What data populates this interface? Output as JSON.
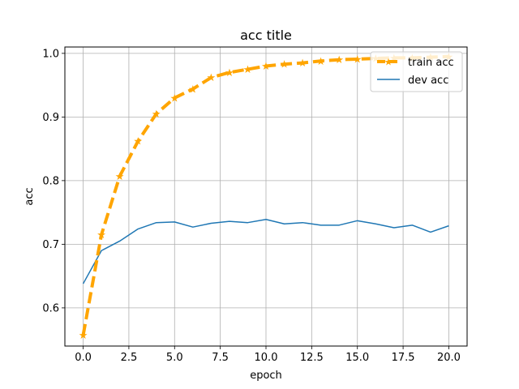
{
  "chart_data": {
    "type": "line",
    "title": "acc title",
    "xlabel": "epoch",
    "ylabel": "acc",
    "xlim": [
      -1,
      21
    ],
    "ylim": [
      0.54,
      1.01
    ],
    "xticks": [
      0.0,
      2.5,
      5.0,
      7.5,
      10.0,
      12.5,
      15.0,
      17.5,
      20.0
    ],
    "xtick_labels": [
      "0.0",
      "2.5",
      "5.0",
      "7.5",
      "10.0",
      "12.5",
      "15.0",
      "17.5",
      "20.0"
    ],
    "yticks": [
      0.6,
      0.7,
      0.8,
      0.9,
      1.0
    ],
    "ytick_labels": [
      "0.6",
      "0.7",
      "0.8",
      "0.9",
      "1.0"
    ],
    "grid": true,
    "legend_position": "top-right",
    "x": [
      0,
      1,
      2,
      3,
      4,
      5,
      6,
      7,
      8,
      9,
      10,
      11,
      12,
      13,
      14,
      15,
      16,
      17,
      18,
      19,
      20
    ],
    "series": [
      {
        "name": "train acc",
        "color": "#ffa500",
        "linestyle": "dashed",
        "marker": "star",
        "values": [
          0.557,
          0.715,
          0.807,
          0.862,
          0.905,
          0.93,
          0.944,
          0.962,
          0.97,
          0.975,
          0.98,
          0.983,
          0.985,
          0.988,
          0.99,
          0.991,
          0.992,
          0.993,
          0.993,
          0.994,
          0.995
        ]
      },
      {
        "name": "dev acc",
        "color": "#1f77b4",
        "linestyle": "solid",
        "marker": "none",
        "values": [
          0.638,
          0.69,
          0.705,
          0.724,
          0.734,
          0.735,
          0.727,
          0.733,
          0.736,
          0.734,
          0.739,
          0.732,
          0.734,
          0.73,
          0.73,
          0.737,
          0.732,
          0.726,
          0.73,
          0.719,
          0.729
        ]
      }
    ]
  }
}
